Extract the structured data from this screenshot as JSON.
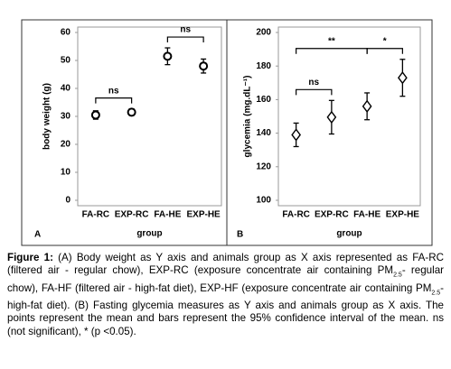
{
  "chart_data": [
    {
      "type": "errorbar",
      "panel_label": "A",
      "ylabel": "body weight (g)",
      "xlabel": "group",
      "marker": "circle",
      "color": "#000000",
      "categories": [
        "FA-RC",
        "EXP-RC",
        "FA-HE",
        "EXP-HE"
      ],
      "values": [
        30.5,
        31.5,
        51.5,
        48
      ],
      "errors": [
        1.5,
        1.2,
        3,
        2.5
      ],
      "ylim": [
        0,
        60
      ],
      "yticks": [
        0,
        10,
        20,
        30,
        40,
        50,
        60
      ],
      "annotations": [
        {
          "text": "ns",
          "from": "FA-RC",
          "to": "EXP-RC"
        },
        {
          "text": "ns",
          "from": "FA-HE",
          "to": "EXP-HE"
        }
      ]
    },
    {
      "type": "errorbar",
      "panel_label": "B",
      "ylabel": "glycemia (mg.dL⁻¹)",
      "xlabel": "group",
      "marker": "diamond",
      "color": "#000000",
      "categories": [
        "FA-RC",
        "EXP-RC",
        "FA-HE",
        "EXP-HE"
      ],
      "values": [
        139,
        149.5,
        156,
        173
      ],
      "errors": [
        7,
        10,
        8,
        11
      ],
      "ylim": [
        100,
        200
      ],
      "yticks": [
        100,
        120,
        140,
        160,
        180,
        200
      ],
      "annotations": [
        {
          "text": "ns",
          "from": "FA-RC",
          "to": "EXP-RC"
        },
        {
          "text": "**",
          "from": "FA-RC",
          "to": "FA-HE"
        },
        {
          "text": "*",
          "from": "FA-HE",
          "to": "EXP-HE"
        }
      ]
    }
  ],
  "caption": {
    "label": "Figure 1:",
    "segments": [
      " (A) Body weight as Y axis and animals group as X axis represented as FA-RC (filtered air - regular chow), EXP-RC (exposure concentrate air containing PM",
      "2.5",
      "- regular chow), FA-HF (filtered air - high-fat diet), EXP-HF (exposure concentrate air containing PM",
      "2.5",
      "- high-fat diet). (B) Fasting glycemia measures as Y axis and animals group as X axis. The points represent the mean and bars represent the 95% confidence interval of the mean. ns (not significant), * (p <0.05)."
    ]
  }
}
